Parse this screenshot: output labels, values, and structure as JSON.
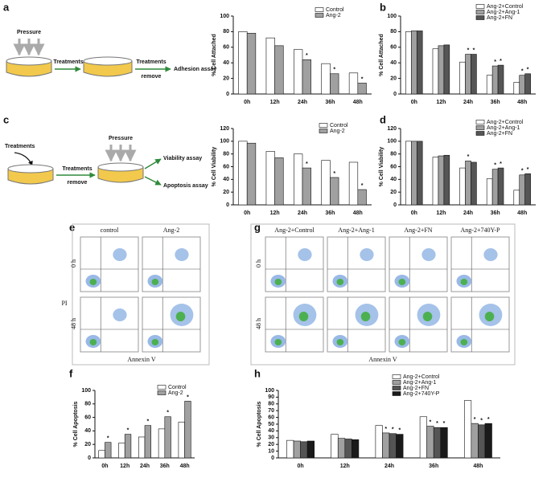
{
  "panel_labels": [
    "a",
    "b",
    "c",
    "d",
    "e",
    "f",
    "g",
    "h"
  ],
  "schematic_a": {
    "pressure": "Pressure",
    "treatments": "Treatments",
    "treatments_remove": [
      "Treatments",
      "remove"
    ],
    "assay": "Adhesion assay"
  },
  "schematic_c": {
    "treatments_in": "Treatments",
    "pressure": "Pressure",
    "treatments_remove": [
      "Treatments",
      "remove"
    ],
    "assays": [
      "Viability assay",
      "Apoptosis assay"
    ]
  },
  "flow_e": {
    "columns": [
      "control",
      "Ang-2"
    ],
    "rows": [
      "0 h",
      "48 h"
    ],
    "y_label": "PI",
    "x_label": "Annexin V"
  },
  "flow_g": {
    "columns": [
      "Ang-2+Control",
      "Ang-2+Ang-1",
      "Ang-2+FN",
      "Ang-2+740Y-P"
    ],
    "rows": [
      "0 h",
      "48 h"
    ],
    "x_label": "Annexin V"
  },
  "chart_data": [
    {
      "type": "bar",
      "ylabel": "% Cell Attached",
      "categories": [
        "0h",
        "12h",
        "24h",
        "36h",
        "48h"
      ],
      "ylim": [
        0,
        100
      ],
      "yticks": [
        0,
        20,
        40,
        60,
        80,
        100
      ],
      "series": [
        {
          "name": "Control",
          "color": "#ffffff",
          "values": [
            80,
            72,
            57,
            39,
            27
          ],
          "stars": [
            null,
            null,
            null,
            null,
            null
          ]
        },
        {
          "name": "Ang-2",
          "color": "#a0a0a0",
          "values": [
            78,
            62,
            44,
            26,
            14
          ],
          "stars": [
            null,
            null,
            "*",
            "*",
            "*"
          ]
        }
      ]
    },
    {
      "type": "bar",
      "ylabel": "% Cell Attached",
      "categories": [
        "0h",
        "12h",
        "24h",
        "36h",
        "48h"
      ],
      "ylim": [
        0,
        100
      ],
      "yticks": [
        0,
        20,
        40,
        60,
        80,
        100
      ],
      "series": [
        {
          "name": "Ang-2+Control",
          "color": "#ffffff",
          "values": [
            80,
            58,
            41,
            24,
            15
          ],
          "stars": [
            null,
            null,
            null,
            null,
            null
          ]
        },
        {
          "name": "Ang-2+Ang-1",
          "color": "#a0a0a0",
          "values": [
            81,
            62,
            51,
            36,
            24
          ],
          "stars": [
            null,
            null,
            "*",
            "*",
            "*"
          ]
        },
        {
          "name": "Ang-2+FN",
          "color": "#555555",
          "values": [
            81,
            63,
            51,
            37,
            26
          ],
          "stars": [
            null,
            null,
            "*",
            "*",
            "*"
          ]
        }
      ]
    },
    {
      "type": "bar",
      "ylabel": "% Cell Viability",
      "categories": [
        "0h",
        "12h",
        "24h",
        "36h",
        "48h"
      ],
      "ylim": [
        0,
        120
      ],
      "yticks": [
        0,
        20,
        40,
        60,
        80,
        100,
        120
      ],
      "series": [
        {
          "name": "Control",
          "color": "#ffffff",
          "values": [
            100,
            84,
            80,
            70,
            67
          ],
          "stars": [
            null,
            null,
            null,
            null,
            null
          ]
        },
        {
          "name": "Ang-2",
          "color": "#a0a0a0",
          "values": [
            97,
            74,
            58,
            43,
            24
          ],
          "stars": [
            null,
            null,
            "*",
            "*",
            "*"
          ]
        }
      ]
    },
    {
      "type": "bar",
      "ylabel": "% Cell Viability",
      "categories": [
        "0h",
        "12h",
        "24h",
        "36h",
        "48h"
      ],
      "ylim": [
        0,
        120
      ],
      "yticks": [
        0,
        20,
        40,
        60,
        80,
        100,
        120
      ],
      "series": [
        {
          "name": "Ang-2+Control",
          "color": "#ffffff",
          "values": [
            100,
            75,
            58,
            41,
            23
          ],
          "stars": [
            null,
            null,
            null,
            null,
            null
          ]
        },
        {
          "name": "Ang-2+Ang-1",
          "color": "#a0a0a0",
          "values": [
            100,
            77,
            69,
            56,
            47
          ],
          "stars": [
            null,
            null,
            "*",
            "*",
            "*"
          ]
        },
        {
          "name": "Ang-2+FN",
          "color": "#555555",
          "values": [
            100,
            78,
            67,
            58,
            49
          ],
          "stars": [
            null,
            null,
            null,
            "*",
            "*"
          ]
        }
      ]
    },
    {
      "type": "bar",
      "ylabel": "% Cell Apoptosis",
      "categories": [
        "0h",
        "12h",
        "24h",
        "36h",
        "48h"
      ],
      "ylim": [
        0,
        100
      ],
      "yticks": [
        0,
        20,
        40,
        60,
        80,
        100
      ],
      "series": [
        {
          "name": "Control",
          "color": "#ffffff",
          "values": [
            11,
            22,
            31,
            43,
            53
          ],
          "stars": [
            null,
            null,
            null,
            null,
            null
          ]
        },
        {
          "name": "Ang-2",
          "color": "#a0a0a0",
          "values": [
            23,
            35,
            48,
            61,
            84
          ],
          "stars": [
            "*",
            "*",
            "*",
            "*",
            "*"
          ]
        }
      ]
    },
    {
      "type": "bar",
      "ylabel": "% Cell Apoptosis",
      "categories": [
        "0h",
        "12h",
        "24h",
        "36h",
        "48h"
      ],
      "ylim": [
        0,
        100
      ],
      "yticks": [
        0,
        10,
        20,
        30,
        40,
        50,
        60,
        70,
        80,
        90,
        100
      ],
      "series": [
        {
          "name": "Ang-2+Control",
          "color": "#ffffff",
          "values": [
            26,
            35,
            48,
            61,
            85
          ],
          "stars": [
            null,
            null,
            null,
            null,
            null
          ]
        },
        {
          "name": "Ang-2+Ang-1",
          "color": "#a0a0a0",
          "values": [
            25,
            29,
            37,
            47,
            51
          ],
          "stars": [
            null,
            null,
            "*",
            "*",
            "*"
          ]
        },
        {
          "name": "Ang-2+FN",
          "color": "#555555",
          "values": [
            24,
            28,
            36,
            45,
            49
          ],
          "stars": [
            null,
            null,
            "*",
            "*",
            "*"
          ]
        },
        {
          "name": "Ang-2+740Y-P",
          "color": "#1a1a1a",
          "values": [
            25,
            27,
            35,
            45,
            51
          ],
          "stars": [
            null,
            null,
            "*",
            "*",
            "*"
          ]
        }
      ]
    }
  ]
}
